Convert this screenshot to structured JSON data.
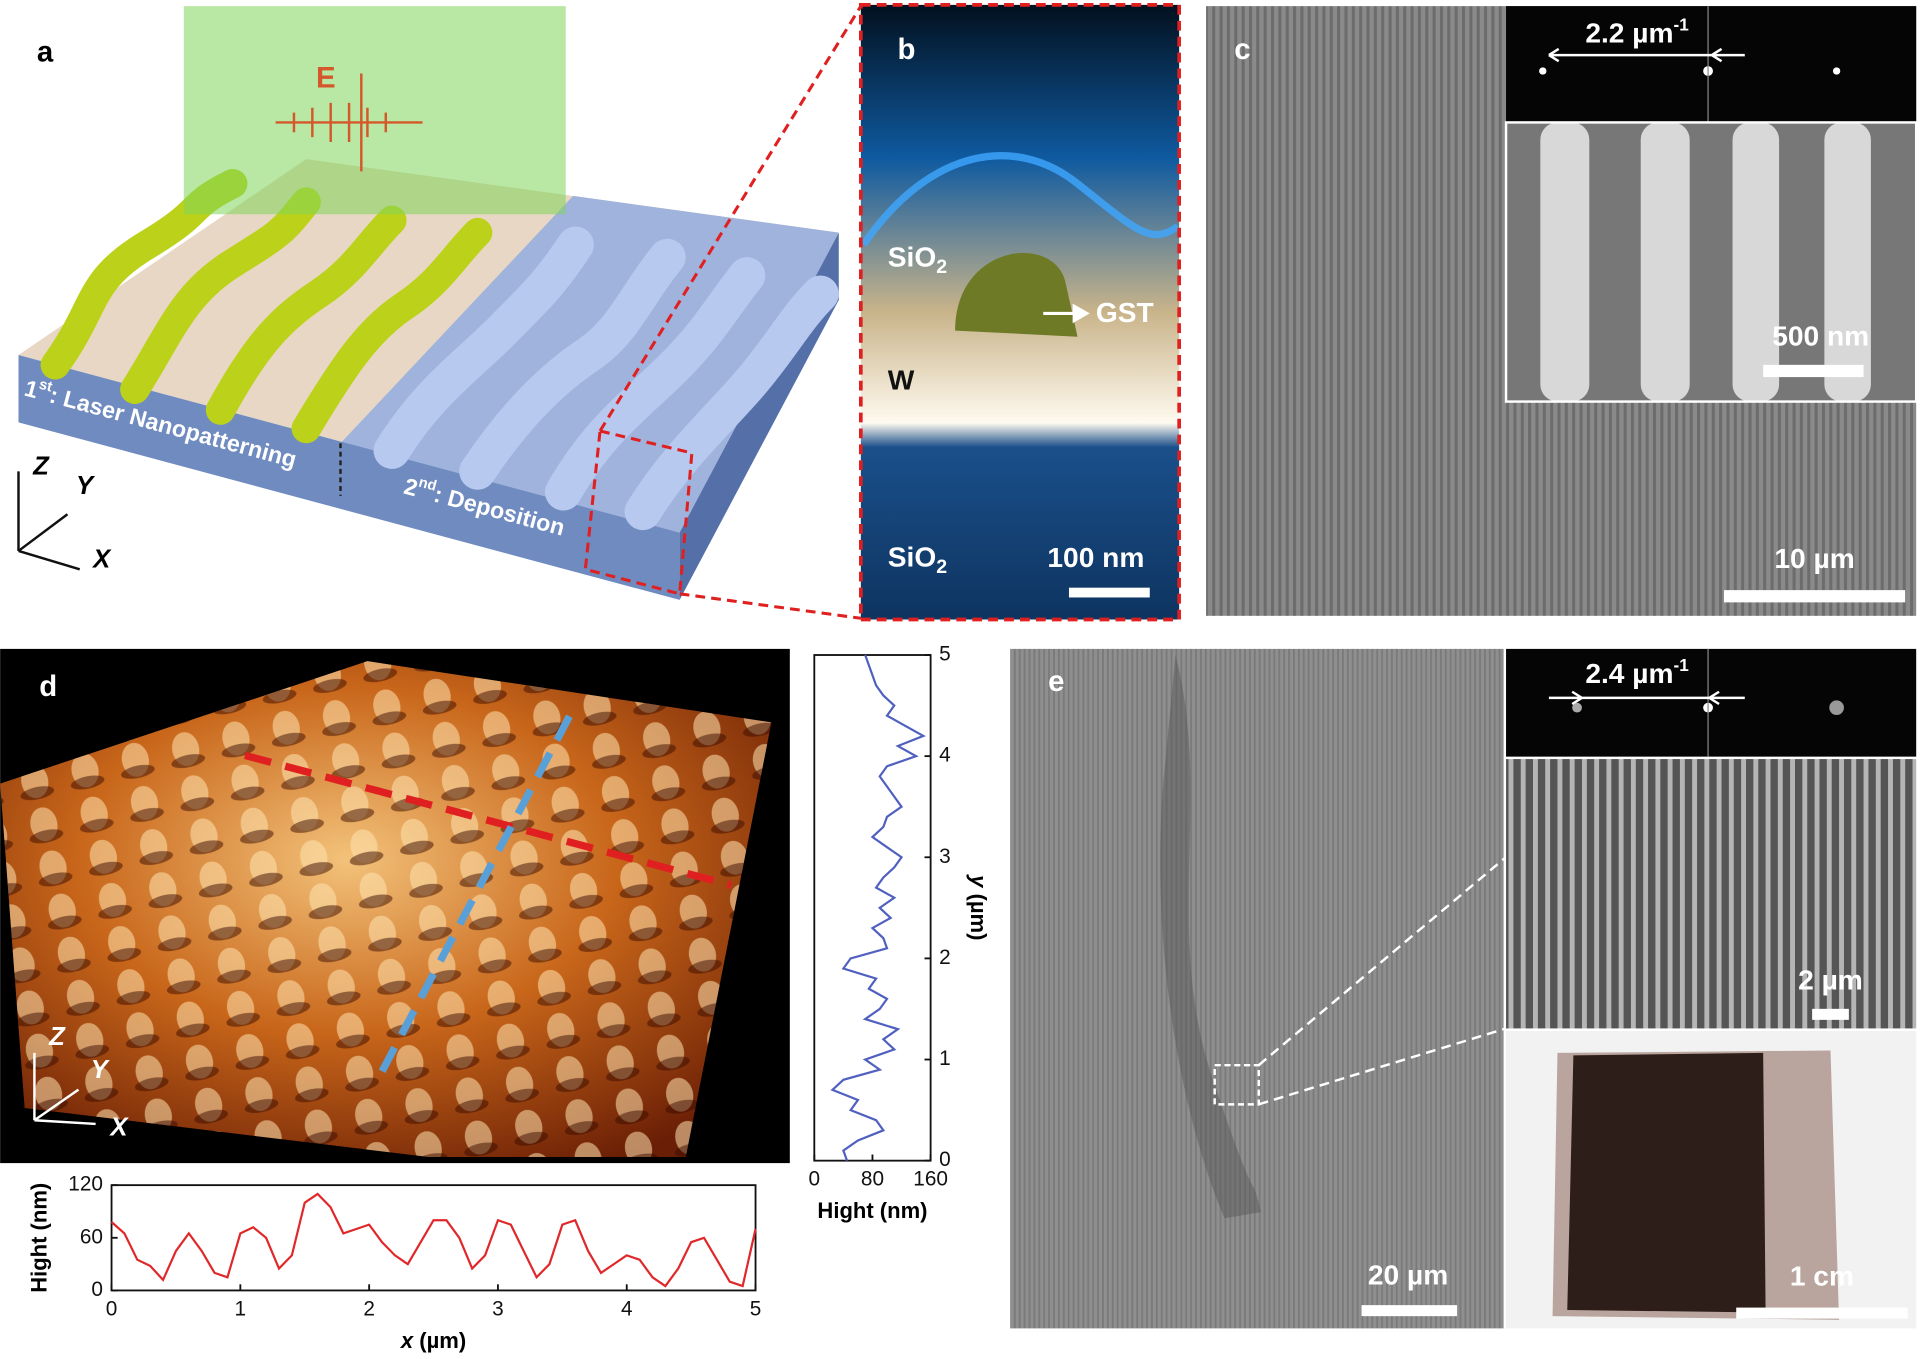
{
  "panels": {
    "a": {
      "label": "a",
      "field": "E",
      "step1": {
        "ordinal": "1",
        "suffix": "st",
        "text": ": Laser Nanopatterning"
      },
      "step2": {
        "ordinal": "2",
        "suffix": "nd",
        "text": ": Deposition"
      },
      "axes": [
        "Z",
        "Y",
        "X"
      ]
    },
    "b": {
      "label": "b",
      "top_layer": {
        "base": "SiO",
        "sub": "2"
      },
      "gst": "GST",
      "metal": "W",
      "bottom_layer": {
        "base": "SiO",
        "sub": "2"
      },
      "scale_bar": "100 nm"
    },
    "c": {
      "label": "c",
      "fft": {
        "base": "2.2 µm",
        "sup": "-1"
      },
      "inset_scale_bar": "500 nm",
      "scale_bar": "10 µm"
    },
    "d": {
      "label": "d",
      "axes": [
        "Z",
        "Y",
        "X"
      ]
    },
    "e": {
      "label": "e",
      "fft": {
        "base": "2.4 µm",
        "sup": "-1"
      },
      "inset_scale_bar": "2 µm",
      "photo_scale_bar": "1 cm",
      "scale_bar": "20 µm"
    }
  },
  "chart_data": [
    {
      "type": "line",
      "color": "#e0282a",
      "x": [
        0,
        0.1,
        0.2,
        0.3,
        0.4,
        0.5,
        0.6,
        0.7,
        0.8,
        0.9,
        1,
        1.1,
        1.2,
        1.3,
        1.4,
        1.5,
        1.6,
        1.7,
        1.8,
        1.9,
        2,
        2.1,
        2.2,
        2.3,
        2.4,
        2.5,
        2.6,
        2.7,
        2.8,
        2.9,
        3,
        3.1,
        3.2,
        3.3,
        3.4,
        3.5,
        3.6,
        3.7,
        3.8,
        3.9,
        4,
        4.1,
        4.2,
        4.3,
        4.4,
        4.5,
        4.6,
        4.7,
        4.8,
        4.9,
        5
      ],
      "y": [
        78,
        65,
        35,
        28,
        12,
        45,
        65,
        45,
        20,
        15,
        65,
        72,
        60,
        25,
        40,
        100,
        110,
        95,
        65,
        70,
        75,
        55,
        40,
        30,
        55,
        80,
        80,
        60,
        25,
        40,
        80,
        75,
        45,
        15,
        30,
        75,
        80,
        45,
        20,
        30,
        40,
        35,
        15,
        5,
        25,
        55,
        60,
        35,
        10,
        5,
        70
      ],
      "xlabel": {
        "symbol": "x",
        "unit": "(µm)"
      },
      "ylabel": "Hight (nm)",
      "xlim": [
        0,
        5
      ],
      "xticks": [
        0,
        1,
        2,
        3,
        4,
        5
      ],
      "ylim": [
        0,
        120
      ],
      "yticks": [
        0,
        60,
        120
      ],
      "yaxis_side": "left"
    },
    {
      "type": "line",
      "color": "#5060c0",
      "x": [
        45,
        40,
        60,
        95,
        85,
        50,
        60,
        25,
        40,
        90,
        70,
        110,
        95,
        115,
        70,
        90,
        100,
        75,
        85,
        40,
        50,
        100,
        95,
        80,
        105,
        90,
        110,
        85,
        95,
        110,
        120,
        100,
        80,
        95,
        100,
        120,
        110,
        100,
        90,
        100,
        140,
        115,
        150,
        125,
        100,
        110,
        95,
        85,
        80,
        75,
        70
      ],
      "y": [
        0,
        0.1,
        0.2,
        0.3,
        0.4,
        0.5,
        0.6,
        0.7,
        0.8,
        0.9,
        1,
        1.1,
        1.2,
        1.3,
        1.4,
        1.5,
        1.6,
        1.7,
        1.8,
        1.9,
        2,
        2.1,
        2.2,
        2.3,
        2.4,
        2.5,
        2.6,
        2.7,
        2.8,
        2.9,
        3,
        3.1,
        3.2,
        3.3,
        3.4,
        3.5,
        3.6,
        3.7,
        3.8,
        3.9,
        4,
        4.1,
        4.2,
        4.3,
        4.4,
        4.5,
        4.6,
        4.7,
        4.8,
        4.9,
        5
      ],
      "xlabel": "Hight (nm)",
      "ylabel": {
        "symbol": "y",
        "unit": "(µm)"
      },
      "xlim": [
        0,
        160
      ],
      "xticks": [
        0,
        80,
        160
      ],
      "ylim": [
        0,
        5
      ],
      "yticks": [
        0,
        1,
        2,
        3,
        4,
        5
      ],
      "yaxis_side": "right"
    }
  ]
}
